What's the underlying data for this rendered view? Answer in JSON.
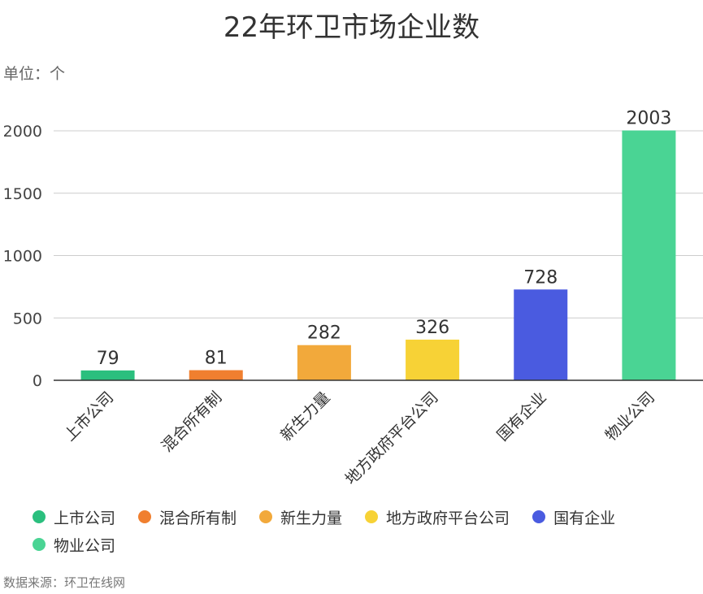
{
  "chart_data": {
    "type": "bar",
    "title": "22年环卫市场企业数",
    "unit_label": "单位：个",
    "source": "数据来源：环卫在线网",
    "categories": [
      "上市公司",
      "混合所有制",
      "新生力量",
      "地方政府平台公司",
      "国有企业",
      "物业公司"
    ],
    "values": [
      79,
      81,
      282,
      326,
      728,
      2003
    ],
    "colors": [
      "#2bbf7e",
      "#f07f2f",
      "#f2a93b",
      "#f7d236",
      "#4a5be0",
      "#4ad494"
    ],
    "ylim": [
      0,
      2000
    ],
    "yticks": [
      0,
      500,
      1000,
      1500,
      2000
    ],
    "grid": true,
    "legend_position": "bottom-left"
  }
}
